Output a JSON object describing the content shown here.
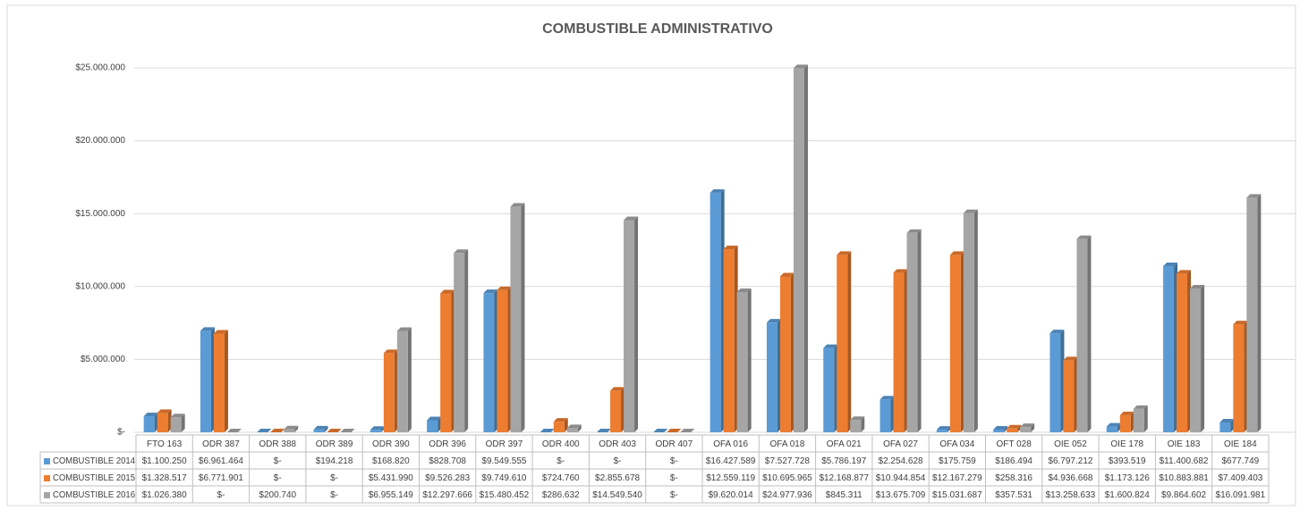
{
  "chart_data": {
    "type": "bar3d",
    "title": "COMBUSTIBLE ADMINISTRATIVO",
    "categories": [
      "FTO 163",
      "ODR 387",
      "ODR 388",
      "ODR 389",
      "ODR 390",
      "ODR 396",
      "ODR 397",
      "ODR 400",
      "ODR 403",
      "ODR 407",
      "OFA 016",
      "OFA 018",
      "OFA 021",
      "OFA 027",
      "OFA 034",
      "OFT 028",
      "OIE 052",
      "OIE 178",
      "OIE 183",
      "OIE 184"
    ],
    "series": [
      {
        "name": "COMBUSTIBLE 2014",
        "color": "#5b9bd5",
        "values": [
          1100250,
          6961464,
          0,
          194218,
          168820,
          828708,
          9549555,
          0,
          0,
          0,
          16427589,
          7527728,
          5786197,
          2254628,
          175759,
          186494,
          6797212,
          393519,
          11400682,
          677749
        ],
        "value_labels": [
          "$1.100.250",
          "$6.961.464",
          "$-",
          "$194.218",
          "$168.820",
          "$828.708",
          "$9.549.555",
          "$-",
          "$-",
          "$-",
          "$16.427.589",
          "$7.527.728",
          "$5.786.197",
          "$2.254.628",
          "$175.759",
          "$186.494",
          "$6.797.212",
          "$393.519",
          "$11.400.682",
          "$677.749"
        ]
      },
      {
        "name": "COMBUSTIBLE 2015",
        "color": "#ed7d31",
        "values": [
          1328517,
          6771901,
          0,
          0,
          5431990,
          9526283,
          9749610,
          724760,
          2855678,
          0,
          12559119,
          10695965,
          12168877,
          10944854,
          12167279,
          258316,
          4936668,
          1173126,
          10883881,
          7409403
        ],
        "value_labels": [
          "$1.328.517",
          "$6.771.901",
          "$-",
          "$-",
          "$5.431.990",
          "$9.526.283",
          "$9.749.610",
          "$724.760",
          "$2.855.678",
          "$-",
          "$12.559.119",
          "$10.695.965",
          "$12.168.877",
          "$10.944.854",
          "$12.167.279",
          "$258.316",
          "$4.936.668",
          "$1.173.126",
          "$10.883.881",
          "$7.409.403"
        ]
      },
      {
        "name": "COMBUSTIBLE 2016",
        "color": "#a5a5a5",
        "values": [
          1026380,
          0,
          200740,
          0,
          6955149,
          12297666,
          15480452,
          286632,
          14549540,
          0,
          9620014,
          24977936,
          845311,
          13675709,
          15031687,
          357531,
          13258633,
          1600824,
          9864602,
          16091981
        ],
        "value_labels": [
          "$1.026.380",
          "$-",
          "$200.740",
          "$-",
          "$6.955.149",
          "$12.297.666",
          "$15.480.452",
          "$286.632",
          "$14.549.540",
          "$-",
          "$9.620.014",
          "$24.977.936",
          "$845.311",
          "$13.675.709",
          "$15.031.687",
          "$357.531",
          "$13.258.633",
          "$1.600.824",
          "$9.864.602",
          "$16.091.981"
        ]
      }
    ],
    "ylim": [
      0,
      25000000
    ],
    "yticks": [
      {
        "value": 0,
        "label": "$-"
      },
      {
        "value": 5000000,
        "label": "$5.000.000"
      },
      {
        "value": 10000000,
        "label": "$10.000.000"
      },
      {
        "value": 15000000,
        "label": "$15.000.000"
      },
      {
        "value": 20000000,
        "label": "$20.000.000"
      },
      {
        "value": 25000000,
        "label": "$25.000.000"
      }
    ],
    "grid": true
  }
}
